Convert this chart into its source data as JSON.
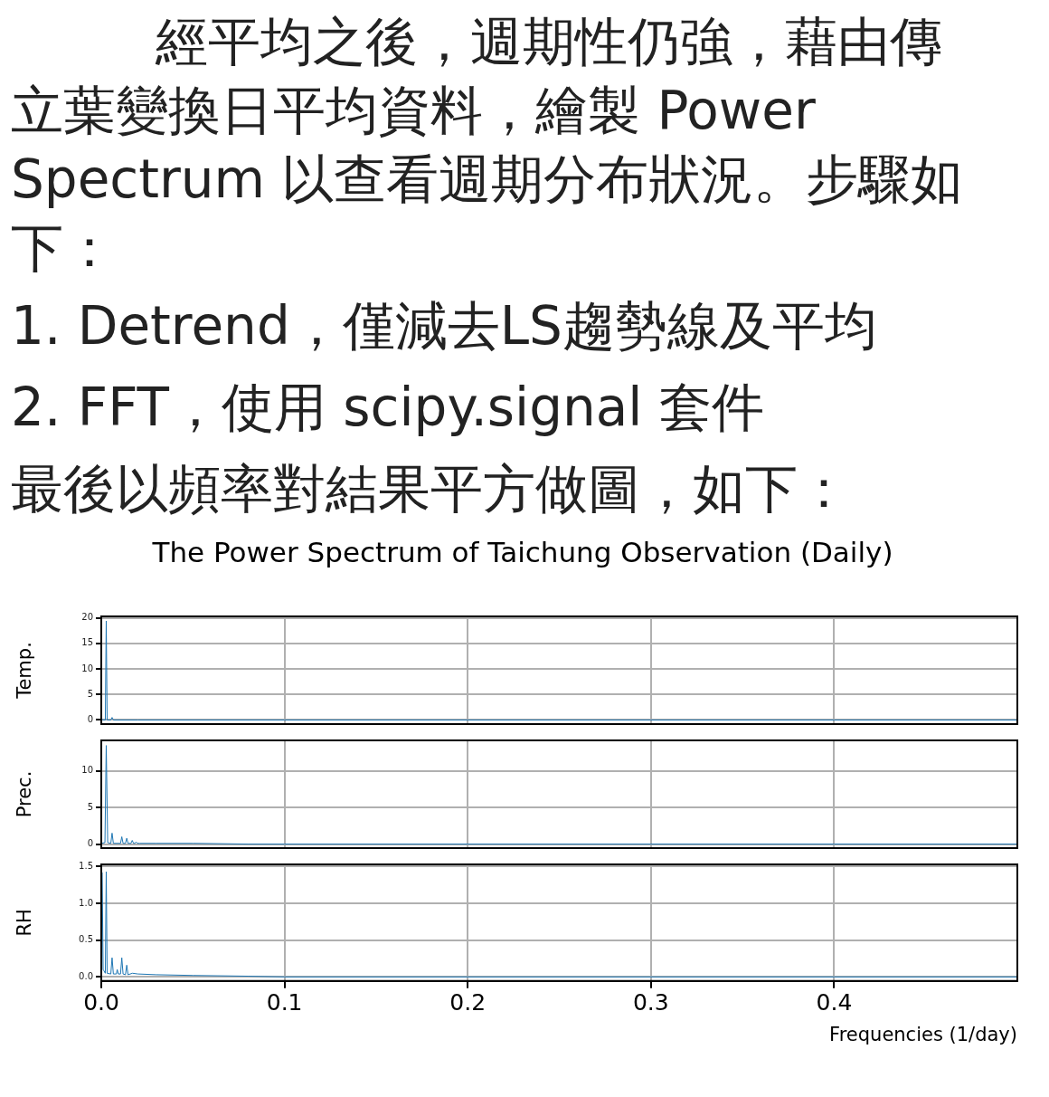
{
  "chart_data": [
    {
      "type": "line",
      "title": "The Power Spectrum of Taichung Observation (Daily)",
      "annotations": [
        "經平均之後，週期性仍強，藉由傳立葉變換日平均資料，繪製 Power Spectrum 以查看週期分布狀況。步驟如下：",
        "1. Detrend，僅減去LS趨勢線及平均",
        "2. FFT，使用 scipy.signal 套件",
        "最後以頻率對結果平方做圖，如下："
      ],
      "ylabel": "Temp.",
      "xlim": [
        0,
        0.5
      ],
      "xticks": [
        0.1,
        0.2,
        0.3,
        0.4
      ],
      "ylim": [
        -0.8,
        20.3
      ],
      "yticks": [
        0,
        5,
        10,
        15,
        20
      ],
      "grid": true,
      "marker": "none",
      "tick_labels": "y",
      "series": [
        {
          "color": "#1f77b4",
          "x": [
            0,
            0.0015,
            0.0022,
            0.0027,
            0.0032,
            0.0052,
            0.0059,
            0.0066,
            0.02,
            0.1,
            0.2,
            0.3,
            0.4,
            0.5
          ],
          "values": [
            0.1,
            0,
            0,
            19.4,
            0,
            0,
            0.5,
            0,
            0,
            0,
            0,
            0,
            0,
            0
          ]
        }
      ]
    },
    {
      "type": "line",
      "ylabel": "Prec.",
      "xlim": [
        0,
        0.5
      ],
      "xticks": [
        0.1,
        0.2,
        0.3,
        0.4
      ],
      "ylim": [
        -0.55,
        14.2
      ],
      "yticks": [
        0,
        5,
        10
      ],
      "grid": true,
      "marker": "none",
      "tick_labels": "y",
      "series": [
        {
          "color": "#1f77b4",
          "x": [
            0,
            0.002,
            0.0027,
            0.0035,
            0.0052,
            0.0059,
            0.0066,
            0.0105,
            0.0112,
            0.0119,
            0.0132,
            0.0139,
            0.0146,
            0.0162,
            0.0169,
            0.0176,
            0.0184,
            0.019,
            0.0197,
            0.021,
            0.03,
            0.05,
            0.08,
            0.1,
            0.2,
            0.3,
            0.4,
            0.5
          ],
          "values": [
            0.1,
            0.2,
            13.5,
            0.2,
            0.1,
            1.5,
            0.1,
            0.1,
            1.0,
            0.1,
            0.1,
            0.8,
            0.1,
            0.1,
            0.5,
            0.1,
            0.1,
            0.3,
            0.1,
            0.1,
            0.1,
            0.1,
            0,
            0,
            0,
            0,
            0,
            0
          ]
        }
      ]
    },
    {
      "type": "line",
      "ylabel": "RH",
      "xlabel": "Frequencies (1/day)",
      "xlim": [
        0,
        0.5
      ],
      "xticks": [
        {
          "value": 0,
          "label": "0.0"
        },
        0.1,
        0.2,
        0.3,
        0.4
      ],
      "ylim": [
        -0.055,
        1.53
      ],
      "yticks": [
        {
          "value": 0,
          "label": "0.0"
        },
        0.5,
        {
          "value": 1,
          "label": "1.0"
        },
        1.5
      ],
      "grid": true,
      "marker": "none",
      "series": [
        {
          "color": "#1f77b4",
          "x": [
            0.0005,
            0.001,
            0.0015,
            0.0022,
            0.0027,
            0.0032,
            0.0052,
            0.0059,
            0.0066,
            0.0082,
            0.0087,
            0.0093,
            0.0105,
            0.0112,
            0.0119,
            0.0132,
            0.0139,
            0.0146,
            0.017,
            0.02,
            0.03,
            0.05,
            0.08,
            0.1,
            0.2,
            0.3,
            0.4,
            0.5
          ],
          "values": [
            1.42,
            0.1,
            0.08,
            0.05,
            1.43,
            0.05,
            0.04,
            0.26,
            0.04,
            0.04,
            0.1,
            0.04,
            0.04,
            0.26,
            0.04,
            0.03,
            0.16,
            0.03,
            0.05,
            0.04,
            0.03,
            0.02,
            0.01,
            0,
            0,
            0,
            0,
            0
          ]
        }
      ]
    }
  ]
}
